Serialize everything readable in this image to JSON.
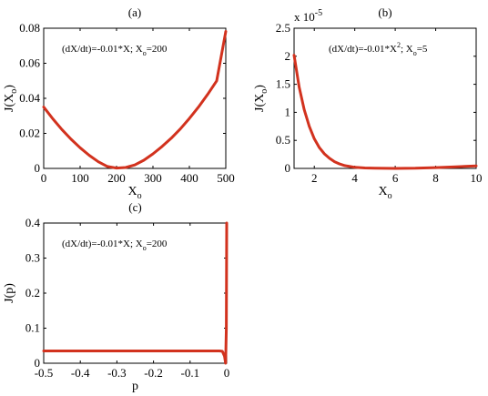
{
  "panels": [
    {
      "id": "a",
      "title": "(a)",
      "annotation": "(dX/dt)=-0.01*X; X",
      "annotation_sub": "o",
      "annotation_tail": "=200",
      "xlabel": "X",
      "xlabel_sub": "o",
      "ylabel": "J(X",
      "ylabel_sub": "o",
      "ylabel_tail": ")",
      "xticks": [
        "0",
        "100",
        "200",
        "300",
        "400",
        "500"
      ],
      "yticks": [
        "0",
        "0.02",
        "0.04",
        "0.06",
        "0.08"
      ]
    },
    {
      "id": "b",
      "title": "(b)",
      "annotation": "(dX/dt)=-0.01*X",
      "annotation_sup": "2",
      "annotation_mid": "; X",
      "annotation_sub": "o",
      "annotation_tail": "=5",
      "xlabel": "X",
      "xlabel_sub": "o",
      "ylabel": "J(X",
      "ylabel_sub": "o",
      "ylabel_tail": ")",
      "exponent_prefix": "x 10",
      "exponent_power": "-5",
      "xticks": [
        "2",
        "4",
        "6",
        "8",
        "10"
      ],
      "yticks": [
        "0",
        "0.5",
        "1",
        "1.5",
        "2",
        "2.5"
      ]
    },
    {
      "id": "c",
      "title": "(c)",
      "annotation": "(dX/dt)=-0.01*X; X",
      "annotation_sub": "o",
      "annotation_tail": "=200",
      "xlabel": "p",
      "ylabel": "J(p)",
      "xticks": [
        "-0.5",
        "-0.4",
        "-0.3",
        "-0.2",
        "-0.1",
        "0"
      ],
      "yticks": [
        "0",
        "0.1",
        "0.2",
        "0.3",
        "0.4"
      ]
    }
  ],
  "chart_data": [
    {
      "type": "line",
      "title": "(a)",
      "xlabel": "Xo",
      "ylabel": "J(Xo)",
      "xlim": [
        0,
        500
      ],
      "ylim": [
        0,
        0.08
      ],
      "series": [
        {
          "color": "#d2321e",
          "x": [
            0,
            25,
            50,
            75,
            100,
            125,
            150,
            175,
            200,
            225,
            250,
            275,
            300,
            325,
            350,
            375,
            400,
            425,
            450,
            475,
            500
          ],
          "y": [
            0.035,
            0.0283,
            0.0222,
            0.0167,
            0.0118,
            0.0075,
            0.0038,
            0.0011,
            0.0002,
            0.0005,
            0.002,
            0.0047,
            0.0083,
            0.0125,
            0.0172,
            0.0225,
            0.0285,
            0.035,
            0.0422,
            0.05,
            0.0782
          ]
        }
      ]
    },
    {
      "type": "line",
      "title": "(b)",
      "xlabel": "Xo",
      "ylabel": "J(Xo)",
      "y_multiplier": "x 10^-5",
      "xlim": [
        1,
        10
      ],
      "ylim": [
        0,
        2.5
      ],
      "series": [
        {
          "color": "#d2321e",
          "x": [
            1,
            1.25,
            1.5,
            1.75,
            2,
            2.25,
            2.5,
            2.75,
            3,
            3.25,
            3.5,
            4,
            4.5,
            5,
            6,
            7,
            8,
            9,
            10
          ],
          "y": [
            2.02,
            1.45,
            1.05,
            0.75,
            0.53,
            0.37,
            0.26,
            0.18,
            0.12,
            0.08,
            0.05,
            0.02,
            0.008,
            0.003,
            0.0,
            0.004,
            0.015,
            0.03,
            0.045
          ]
        }
      ]
    },
    {
      "type": "line",
      "title": "(c)",
      "xlabel": "p",
      "ylabel": "J(p)",
      "xlim": [
        -0.5,
        0
      ],
      "ylim": [
        0,
        0.4
      ],
      "series": [
        {
          "color": "#d2321e",
          "x": [
            -0.5,
            -0.4,
            -0.3,
            -0.2,
            -0.1,
            -0.02,
            -0.012,
            -0.006,
            -0.003,
            -0.001,
            0
          ],
          "y": [
            0.035,
            0.035,
            0.035,
            0.035,
            0.035,
            0.035,
            0.034,
            0.02,
            0.0,
            0.1,
            0.4
          ]
        }
      ]
    }
  ]
}
